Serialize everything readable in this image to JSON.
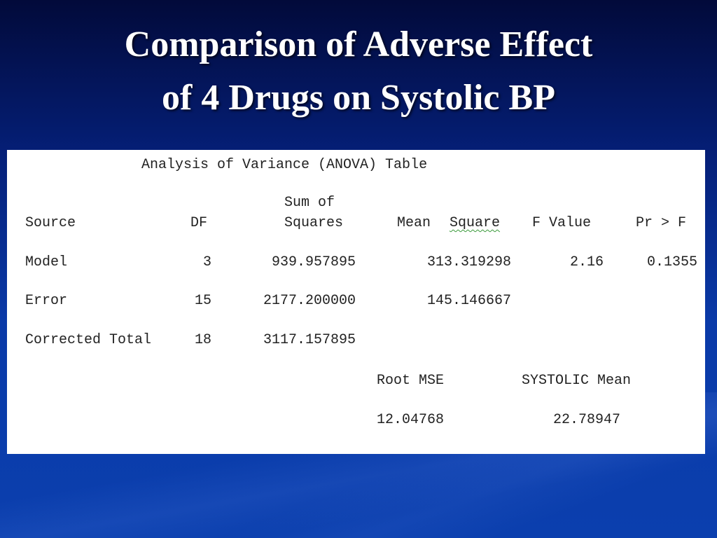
{
  "slide": {
    "title_line1": "Comparison of Adverse Effect",
    "title_line2": "of 4 Drugs on Systolic BP"
  },
  "anova": {
    "heading": "Analysis of Variance (ANOVA) Table",
    "headers": {
      "source": "Source",
      "df": "DF",
      "ss_line1": "Sum of",
      "ss_line2": "Squares",
      "ms_mean": "Mean",
      "ms_square": "Square",
      "f_value": "F Value",
      "pr_f": "Pr > F"
    },
    "rows": [
      {
        "source": "Model",
        "df": "3",
        "ss": "939.957895",
        "ms": "313.319298",
        "f": "2.16",
        "p": "0.1355"
      },
      {
        "source": "Error",
        "df": "15",
        "ss": "2177.200000",
        "ms": "145.146667",
        "f": "",
        "p": ""
      },
      {
        "source": "Corrected Total",
        "df": "18",
        "ss": "3117.157895",
        "ms": "",
        "f": "",
        "p": ""
      }
    ],
    "footer": {
      "root_mse_label": "Root MSE",
      "systolic_mean_label": "SYSTOLIC Mean",
      "root_mse_value": "12.04768",
      "systolic_mean_value": "22.78947"
    }
  }
}
